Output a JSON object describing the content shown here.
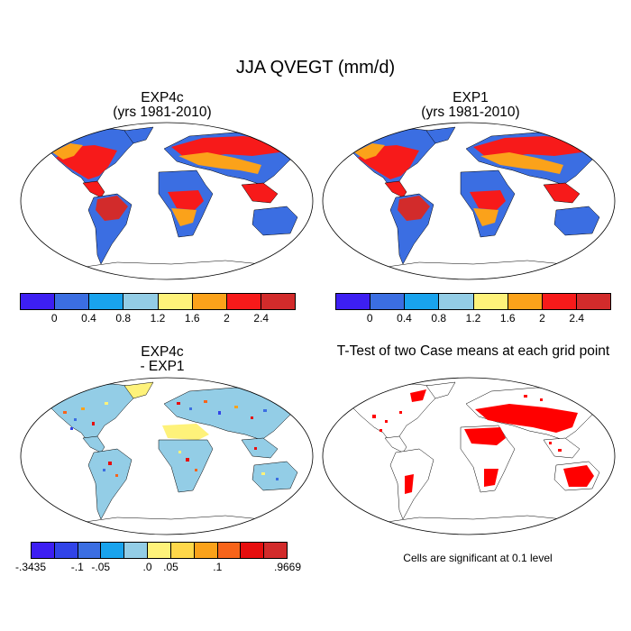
{
  "title": "JJA QVEGT (mm/d)",
  "panels": [
    {
      "title_line1": "EXP4c",
      "title_line2": "(yrs 1981-2010)"
    },
    {
      "title_line1": "EXP1",
      "title_line2": "(yrs 1981-2010)"
    },
    {
      "title_line1": "EXP4c",
      "title_line2": "- EXP1"
    },
    {
      "title_line1": "T-Test of two Case means at each grid point",
      "title_line2": ""
    }
  ],
  "significance_note": "Cells are significant at 0.1 level",
  "colorbar_abs": {
    "colors": [
      "#3d1ff2",
      "#3b6ee2",
      "#19a3ed",
      "#93cde6",
      "#fef27a",
      "#fba21a",
      "#f71a1a",
      "#d22b2b"
    ],
    "tick_labels": [
      "0",
      "0.4",
      "0.8",
      "1.2",
      "1.6",
      "2",
      "2.4"
    ]
  },
  "colorbar_diff": {
    "colors": [
      "#3d1ff2",
      "#3144e8",
      "#3b6ee2",
      "#19a3ed",
      "#93cde6",
      "#fef27a",
      "#ffd84a",
      "#fba21a",
      "#f7641a",
      "#e60e0e",
      "#d22b2b"
    ],
    "tick_labels": [
      "-.3435",
      "-.1",
      "-.05",
      ".0",
      ".05",
      ".1",
      ".9669"
    ]
  },
  "significant_color": "#ff0000"
}
